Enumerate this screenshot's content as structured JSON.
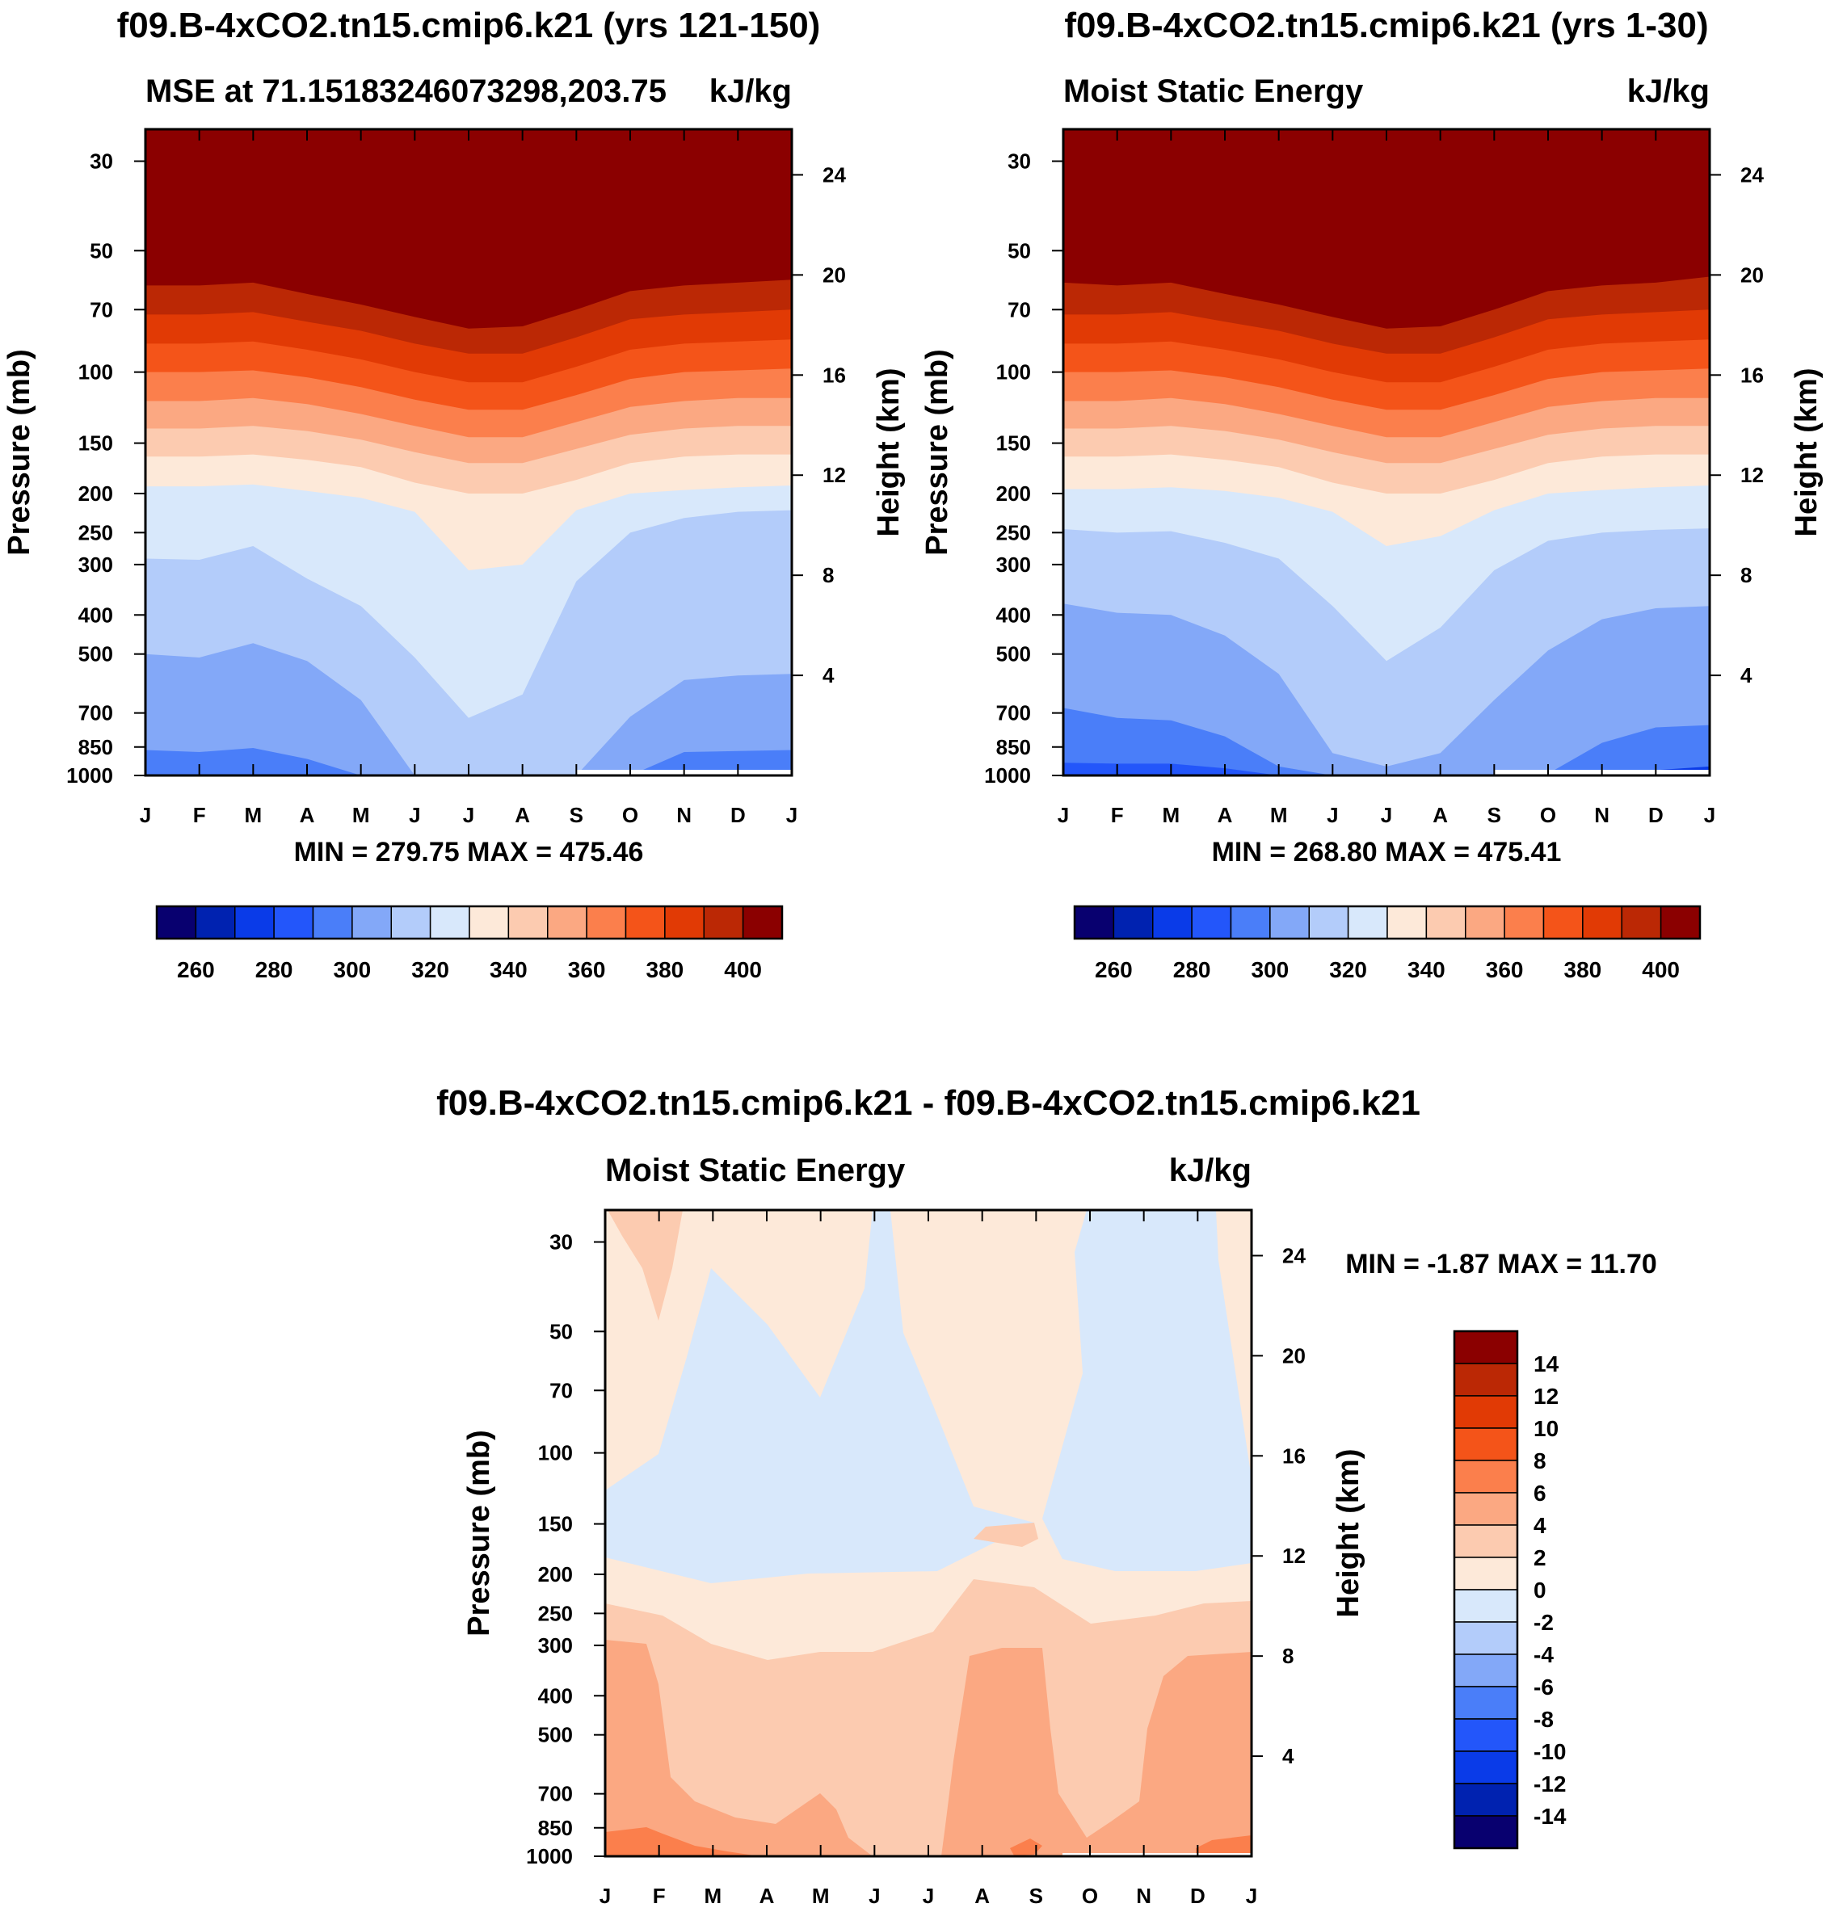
{
  "colors": {
    "diverging_palette": [
      "#08006f",
      "#0022b0",
      "#0a3be8",
      "#2356fa",
      "#4a7ef9",
      "#83a8f8",
      "#b3ccfa",
      "#d8e8fb",
      "#fde9d9",
      "#fccbb0",
      "#fba882",
      "#fb7f4c",
      "#f45419",
      "#e13a05",
      "#bb2805",
      "#8b0000"
    ]
  },
  "chart_data": [
    {
      "type": "heatmap",
      "id": "panel_left",
      "title": "f09.B-4xCO2.tn15.cmip6.k21 (yrs 121-150)",
      "subtitle_left": "MSE at 71.15183246073298,203.75",
      "subtitle_right": "kJ/kg",
      "xlabel": "",
      "ylabel": "Pressure (mb)",
      "ylabel_right": "Height (km)",
      "x_tick_labels": [
        "J",
        "F",
        "M",
        "A",
        "M",
        "J",
        "J",
        "A",
        "S",
        "O",
        "N",
        "D",
        "J"
      ],
      "y_ticks_pressure": [
        30,
        50,
        70,
        100,
        150,
        200,
        250,
        300,
        400,
        500,
        700,
        850,
        1000
      ],
      "y_ticks_height": [
        24,
        20,
        16,
        12,
        8,
        4
      ],
      "ylim_pressure": [
        1000,
        25
      ],
      "minmax_text": "MIN = 279.75 MAX = 475.46",
      "contour_levels": [
        250,
        260,
        270,
        280,
        290,
        300,
        310,
        320,
        330,
        340,
        350,
        360,
        370,
        380,
        390,
        400,
        410
      ],
      "colorbar_labels": [
        "260",
        "280",
        "300",
        "320",
        "340",
        "360",
        "380",
        "400"
      ],
      "boundaries_pressure": {
        "320": [
          290,
          292,
          270,
          325,
          380,
          510,
          720,
          630,
          330,
          250,
          230,
          222,
          220
        ],
        "310": [
          500,
          510,
          470,
          520,
          650,
          1000,
          1000,
          1000,
          1000,
          715,
          580,
          565,
          560
        ],
        "300": [
          865,
          875,
          855,
          910,
          1000,
          1000,
          1000,
          1000,
          1000,
          1000,
          875,
          870,
          865
        ],
        "290": [
          1000,
          1000,
          1000,
          1000,
          1000,
          1000,
          1000,
          1000,
          1000,
          1000,
          1000,
          1000,
          1000
        ],
        "330": [
          192,
          192,
          190,
          197,
          205,
          222,
          310,
          300,
          220,
          200,
          196,
          193,
          191
        ],
        "340": [
          162,
          162,
          160,
          165,
          172,
          188,
          200,
          200,
          185,
          168,
          162,
          160,
          160
        ],
        "350": [
          138,
          138,
          136,
          140,
          147,
          158,
          168,
          168,
          155,
          143,
          138,
          136,
          136
        ],
        "360": [
          118,
          118,
          116,
          120,
          127,
          136,
          145,
          145,
          133,
          122,
          118,
          116,
          116
        ],
        "370": [
          100,
          100,
          99,
          103,
          109,
          117,
          124,
          124,
          114,
          104,
          100,
          99,
          98
        ],
        "380": [
          85,
          85,
          84,
          88,
          93,
          100,
          106,
          106,
          97,
          88,
          85,
          84,
          83
        ],
        "390": [
          72,
          72,
          71,
          75,
          79,
          85,
          90,
          90,
          82,
          74,
          72,
          71,
          70
        ],
        "400": [
          61,
          61,
          60,
          64,
          68,
          73,
          78,
          77,
          70,
          63,
          61,
          60,
          59
        ]
      },
      "surface_band": "1000 mb white band from S to J"
    },
    {
      "type": "heatmap",
      "id": "panel_right",
      "title": "f09.B-4xCO2.tn15.cmip6.k21 (yrs 1-30)",
      "subtitle_left": "Moist Static Energy",
      "subtitle_right": "kJ/kg",
      "xlabel": "",
      "ylabel": "Pressure (mb)",
      "ylabel_right": "Height (km)",
      "x_tick_labels": [
        "J",
        "F",
        "M",
        "A",
        "M",
        "J",
        "J",
        "A",
        "S",
        "O",
        "N",
        "D",
        "J"
      ],
      "y_ticks_pressure": [
        30,
        50,
        70,
        100,
        150,
        200,
        250,
        300,
        400,
        500,
        700,
        850,
        1000
      ],
      "y_ticks_height": [
        24,
        20,
        16,
        12,
        8,
        4
      ],
      "ylim_pressure": [
        1000,
        25
      ],
      "minmax_text": "MIN = 268.80 MAX = 475.41",
      "contour_levels": [
        250,
        260,
        270,
        280,
        290,
        300,
        310,
        320,
        330,
        340,
        350,
        360,
        370,
        380,
        390,
        400,
        410
      ],
      "colorbar_labels": [
        "260",
        "280",
        "300",
        "320",
        "340",
        "360",
        "380",
        "400"
      ],
      "boundaries_pressure": {
        "280": [
          1000,
          1000,
          1000,
          1000,
          1000,
          1000,
          1000,
          1000,
          1000,
          1000,
          1000,
          970,
          950
        ],
        "290": [
          930,
          935,
          935,
          960,
          1000,
          1000,
          1000,
          1000,
          1000,
          1000,
          1000,
          1000,
          1000
        ],
        "300": [
          680,
          720,
          730,
          800,
          950,
          1000,
          1000,
          1000,
          1000,
          990,
          830,
          760,
          750
        ],
        "310": [
          375,
          395,
          400,
          450,
          560,
          880,
          950,
          880,
          650,
          490,
          410,
          385,
          380
        ],
        "320": [
          245,
          250,
          248,
          265,
          290,
          380,
          520,
          430,
          310,
          262,
          250,
          246,
          244
        ],
        "330": [
          195,
          195,
          193,
          197,
          205,
          222,
          270,
          255,
          220,
          200,
          196,
          193,
          191
        ],
        "340": [
          162,
          162,
          160,
          165,
          172,
          188,
          200,
          200,
          185,
          168,
          162,
          160,
          160
        ],
        "350": [
          138,
          138,
          136,
          140,
          147,
          158,
          168,
          168,
          155,
          143,
          138,
          136,
          136
        ],
        "360": [
          118,
          118,
          116,
          120,
          127,
          136,
          145,
          145,
          133,
          122,
          118,
          116,
          116
        ],
        "370": [
          100,
          100,
          99,
          103,
          109,
          117,
          124,
          124,
          114,
          104,
          100,
          99,
          98
        ],
        "380": [
          85,
          85,
          84,
          88,
          93,
          100,
          106,
          106,
          97,
          88,
          85,
          84,
          83
        ],
        "390": [
          72,
          72,
          71,
          75,
          79,
          85,
          90,
          90,
          82,
          74,
          72,
          71,
          70
        ],
        "400": [
          60,
          61,
          60,
          64,
          68,
          73,
          78,
          77,
          70,
          63,
          61,
          60,
          58
        ]
      },
      "surface_band": "1000 mb white band from S to J"
    },
    {
      "type": "heatmap",
      "id": "panel_diff",
      "title": "f09.B-4xCO2.tn15.cmip6.k21 - f09.B-4xCO2.tn15.cmip6.k21",
      "subtitle_left": "Moist Static Energy",
      "subtitle_right": "kJ/kg",
      "xlabel": "",
      "ylabel": "Pressure (mb)",
      "ylabel_right": "Height (km)",
      "x_tick_labels": [
        "J",
        "F",
        "M",
        "A",
        "M",
        "J",
        "J",
        "A",
        "S",
        "O",
        "N",
        "D",
        "J"
      ],
      "y_ticks_pressure": [
        30,
        50,
        70,
        100,
        150,
        200,
        250,
        300,
        400,
        500,
        700,
        850,
        1000
      ],
      "y_ticks_height": [
        24,
        20,
        16,
        12,
        8,
        4
      ],
      "ylim_pressure": [
        1000,
        25
      ],
      "minmax_text": "MIN =  -1.87 MAX =  11.70",
      "contour_levels": [
        -16,
        -14,
        -12,
        -10,
        -8,
        -6,
        -4,
        -2,
        0,
        2,
        4,
        6,
        8,
        10,
        12,
        14,
        16
      ],
      "colorbar_labels": [
        "14",
        "12",
        "10",
        "8",
        "6",
        "4",
        "2",
        "0",
        "-2",
        "-4",
        "-6",
        "-8",
        "-10",
        "-12",
        "-14"
      ],
      "regions": [
        {
          "value_range": [
            0,
            2
          ],
          "description": "background upper troposphere/stratosphere"
        },
        {
          "value_range": [
            -2,
            0
          ],
          "description": "tongues near 100-190 mb and upper levels"
        },
        {
          "value_range": [
            2,
            4
          ],
          "description": "layer ~230 mb to surface"
        },
        {
          "value_range": [
            4,
            6
          ],
          "description": "lower troposphere J-F, A-S, N-J"
        },
        {
          "value_range": [
            6,
            8
          ],
          "description": "near surface 850-1000 mb"
        }
      ]
    }
  ]
}
